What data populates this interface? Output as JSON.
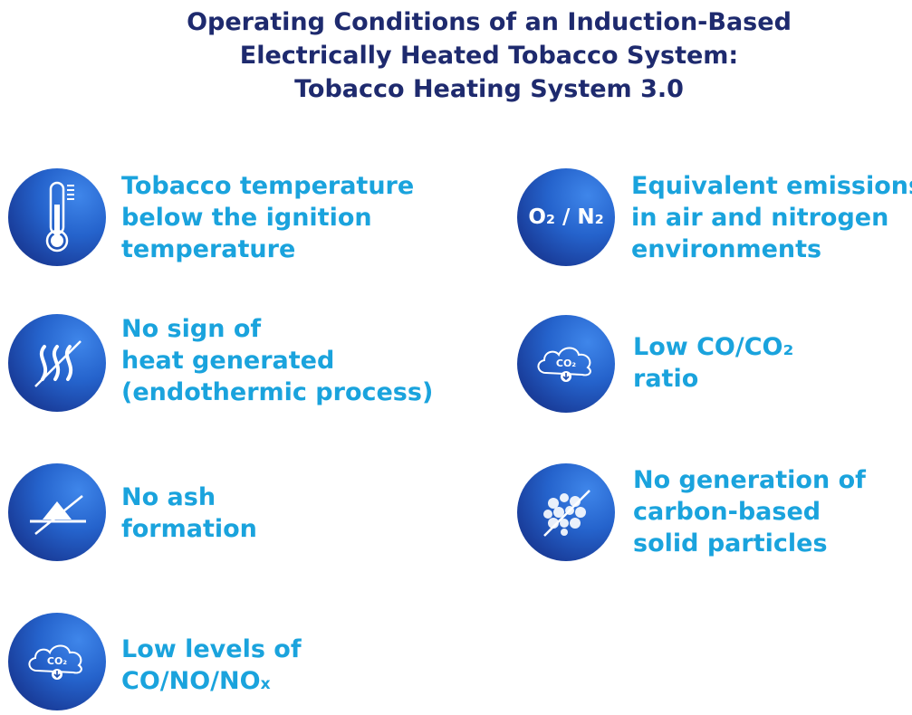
{
  "title": {
    "line1": "Operating Conditions of an Induction-Based",
    "line2": "Electrically Heated Tobacco System:",
    "line3": "Tobacco Heating System 3.0"
  },
  "items": [
    {
      "icon": "thermometer-icon",
      "lines": [
        "Tobacco temperature",
        "below the ignition",
        "temperature"
      ]
    },
    {
      "icon": "o2-n2-icon",
      "icon_text": "O₂ / N₂",
      "lines": [
        "Equivalent emissions",
        "in air and nitrogen",
        "environments"
      ]
    },
    {
      "icon": "no-heat-waves-icon",
      "lines": [
        "No sign of",
        "heat generated",
        "(endothermic process)"
      ]
    },
    {
      "icon": "co2-cloud-icon",
      "icon_text": "CO₂",
      "lines": [
        "Low CO/CO₂",
        "ratio"
      ]
    },
    {
      "icon": "no-ash-icon",
      "lines": [
        "No ash",
        "formation"
      ]
    },
    {
      "icon": "no-particles-icon",
      "lines": [
        "No generation of",
        "carbon-based",
        "solid particles"
      ]
    },
    {
      "icon": "co2-cloud-icon",
      "icon_text": "CO₂",
      "lines": [
        "Low levels of",
        "CO/NO/NO",
        "x"
      ]
    }
  ],
  "colors": {
    "title": "#1e2a6e",
    "accent": "#1aa3dd",
    "icon_bg": "#1f4fb0"
  }
}
